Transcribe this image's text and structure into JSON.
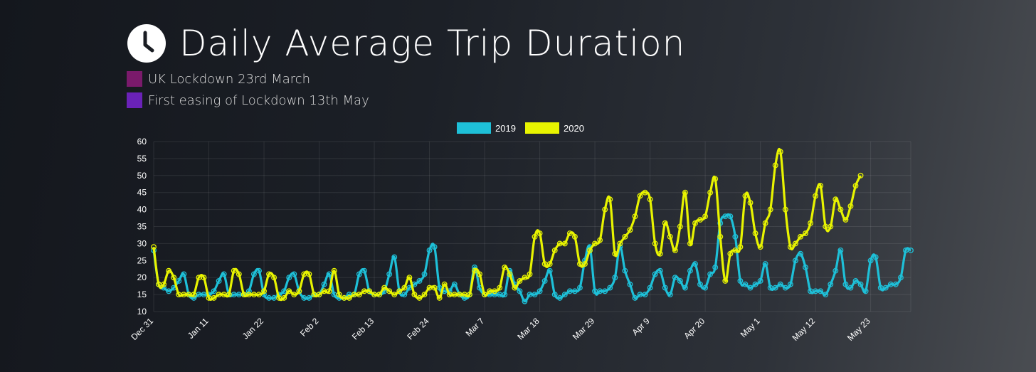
{
  "header": {
    "title": "Daily Average Trip Duration",
    "icon": "clock-icon",
    "annotations": [
      {
        "label": "UK Lockdown 23rd March",
        "color": "#7a1a6b"
      },
      {
        "label": "First easing of Lockdown 13th May",
        "color": "#6a22b8"
      }
    ]
  },
  "chart_data": {
    "type": "line",
    "title": "Daily Average Trip Duration",
    "xlabel": "",
    "ylabel": "",
    "ylim": [
      10,
      60
    ],
    "yticks": [
      10,
      15,
      20,
      25,
      30,
      35,
      40,
      45,
      50,
      55,
      60
    ],
    "xticks": [
      "Dec 31",
      "Jan 11",
      "Jan 22",
      "Feb 2",
      "Feb 13",
      "Feb 24",
      "Mar 7",
      "Mar 18",
      "Mar 29",
      "Apr 9",
      "Apr 20",
      "May 1",
      "May 12",
      "May 23"
    ],
    "grid": true,
    "legend_position": "top-center",
    "series": [
      {
        "name": "2019",
        "color": "#1ec0d8",
        "values": [
          28,
          18,
          17,
          16,
          17,
          19,
          21,
          15,
          14,
          15,
          15,
          15,
          16,
          19,
          21,
          15,
          15,
          15,
          15,
          16,
          21,
          22,
          15,
          14,
          14,
          15,
          16,
          20,
          21,
          16,
          14,
          14,
          15,
          15,
          18,
          21,
          15,
          14,
          14,
          15,
          15,
          21,
          22,
          16,
          15,
          15,
          16,
          21,
          26,
          16,
          15,
          17,
          18,
          19,
          21,
          28,
          29,
          17,
          16,
          16,
          18,
          15,
          14,
          15,
          23,
          17,
          15,
          15,
          15,
          15,
          15,
          22,
          18,
          16,
          13,
          15,
          15,
          16,
          19,
          22,
          15,
          14,
          15,
          16,
          16,
          17,
          25,
          29,
          16,
          16,
          16,
          17,
          20,
          29,
          22,
          18,
          14,
          15,
          15,
          17,
          21,
          22,
          17,
          15,
          20,
          19,
          17,
          22,
          24,
          18,
          17,
          21,
          23,
          36,
          38,
          38,
          32,
          19,
          18,
          17,
          18,
          19,
          24,
          17,
          17,
          18,
          17,
          18,
          25,
          27,
          23,
          16,
          16,
          16,
          15,
          18,
          22,
          28,
          18,
          17,
          19,
          18,
          16,
          25,
          26,
          17,
          17,
          18,
          18,
          20,
          28,
          28
        ]
      },
      {
        "name": "2020",
        "color": "#e8f400",
        "values": [
          29,
          18,
          18,
          22,
          20,
          15,
          15,
          15,
          15,
          20,
          20,
          14,
          14,
          15,
          15,
          15,
          22,
          21,
          15,
          15,
          15,
          15,
          16,
          21,
          20,
          14,
          14,
          16,
          15,
          16,
          21,
          21,
          15,
          15,
          16,
          16,
          22,
          15,
          14,
          14,
          15,
          15,
          16,
          16,
          15,
          15,
          17,
          16,
          15,
          16,
          17,
          20,
          15,
          14,
          15,
          17,
          17,
          14,
          18,
          15,
          15,
          15,
          15,
          15,
          22,
          21,
          15,
          16,
          16,
          17,
          23,
          21,
          17,
          19,
          20,
          21,
          32,
          33,
          24,
          24,
          28,
          30,
          30,
          33,
          32,
          24,
          24,
          28,
          30,
          31,
          40,
          43,
          27,
          30,
          32,
          34,
          38,
          44,
          45,
          43,
          30,
          27,
          36,
          32,
          28,
          35,
          45,
          30,
          36,
          37,
          38,
          45,
          49,
          32,
          19,
          27,
          28,
          29,
          44,
          42,
          33,
          29,
          36,
          40,
          53,
          57,
          40,
          29,
          30,
          32,
          33,
          36,
          44,
          47,
          35,
          35,
          43,
          40,
          37,
          41,
          47,
          50
        ]
      }
    ]
  }
}
